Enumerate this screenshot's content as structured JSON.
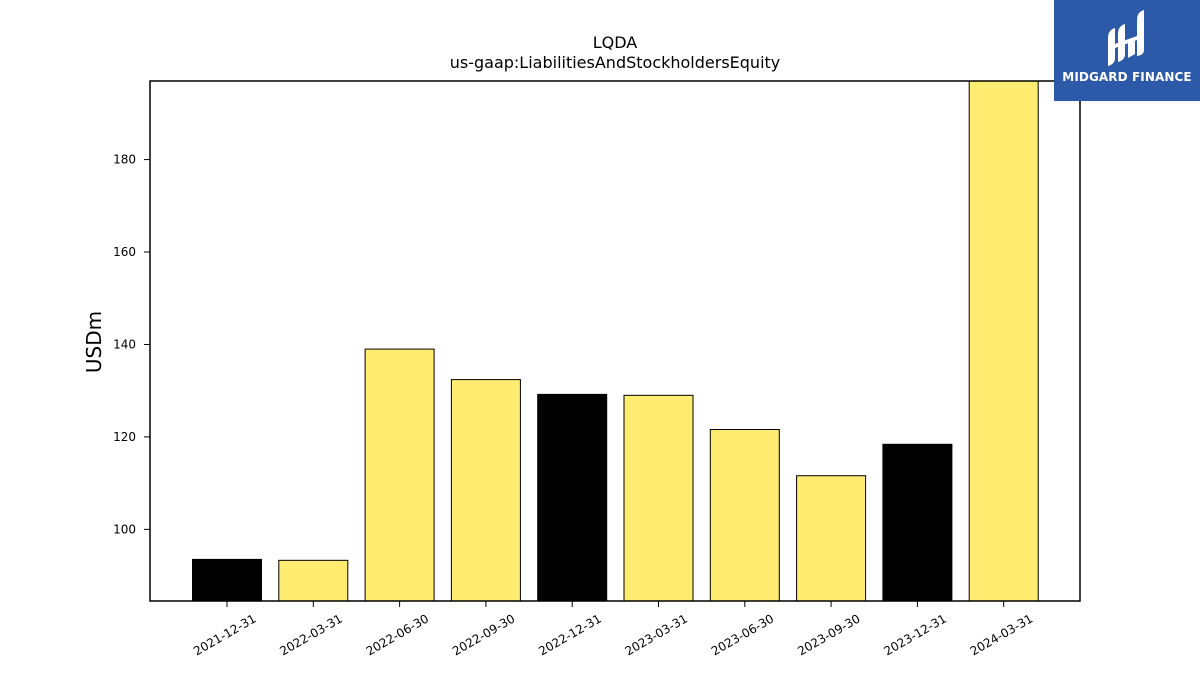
{
  "chart_data": {
    "type": "bar",
    "title": "LQDA",
    "subtitle": "us-gaap:LiabilitiesAndStockholdersEquity",
    "xlabel": "",
    "ylabel": "USDm",
    "ylim": [
      84.5,
      197
    ],
    "yticks": [
      100,
      120,
      140,
      160,
      180
    ],
    "categories": [
      "2021-12-31",
      "2022-03-31",
      "2022-06-30",
      "2022-09-30",
      "2022-12-31",
      "2023-03-31",
      "2023-06-30",
      "2023-09-30",
      "2023-12-31",
      "2024-03-31"
    ],
    "values": [
      93.5,
      93.3,
      139.0,
      132.4,
      129.2,
      129.0,
      121.6,
      111.6,
      118.4,
      197.0
    ],
    "bar_colors": [
      "#000000",
      "#ffec70",
      "#ffec70",
      "#ffec70",
      "#000000",
      "#ffec70",
      "#ffec70",
      "#ffec70",
      "#000000",
      "#ffec70"
    ],
    "grid": false,
    "legend": "none"
  },
  "brand": {
    "name": "MIDGARD FINANCE",
    "background": "#2d5aa8"
  }
}
